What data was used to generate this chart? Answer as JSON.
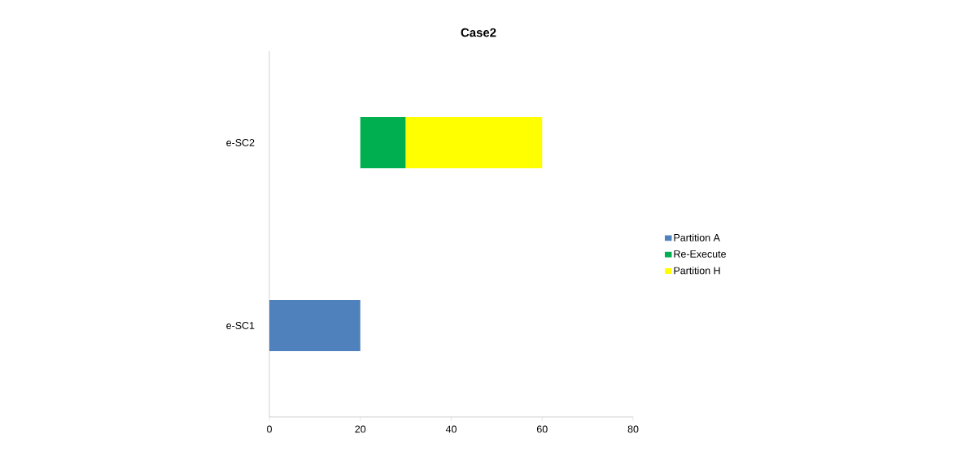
{
  "chart_data": {
    "type": "bar",
    "title": "Case2",
    "orientation": "horizontal",
    "categories": [
      "e-SC2",
      "e-SC1"
    ],
    "series": [
      {
        "name": "Partition A",
        "color": "#4f81bd",
        "values": [
          null,
          20
        ],
        "base": [
          null,
          0
        ]
      },
      {
        "name": "Re-Execute",
        "color": "#00b050",
        "values": [
          10,
          null
        ],
        "base": [
          20,
          null
        ]
      },
      {
        "name": "Partition H",
        "color": "#ffff00",
        "values": [
          30,
          null
        ],
        "base": [
          30,
          null
        ]
      }
    ],
    "xlim": [
      0,
      80
    ],
    "xticks": [
      0,
      20,
      40,
      60,
      80
    ],
    "legend": "right",
    "grid": false
  }
}
